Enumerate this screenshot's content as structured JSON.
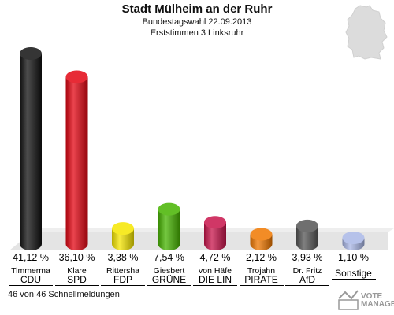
{
  "header": {
    "title": "Stadt Mülheim an der Ruhr",
    "subtitle": "Bundestagswahl 22.09.2013",
    "district": "Erststimmen 3 Linksruhr"
  },
  "footer": {
    "status": "46 von 46 Schnellmeldungen"
  },
  "logo": {
    "text_line1": "VOTE",
    "text_line2": "MANAGER"
  },
  "chart_data": {
    "type": "bar",
    "title": "Stadt Mülheim an der Ruhr",
    "categories": [
      "CDU",
      "SPD",
      "FDP",
      "GRÜNE",
      "DIE LINKE",
      "PIRATEN",
      "AfD",
      "Sonstige"
    ],
    "candidates": [
      "Timmerma",
      "Klare",
      "Rittersha",
      "Giesbert",
      "von Häfe",
      "Trojahn",
      "Dr. Fritz",
      ""
    ],
    "party_labels": [
      "CDU",
      "SPD",
      "FDP",
      "GRÜNE",
      "DIE LIN",
      "PIRATE",
      "AfD",
      "Sonstige"
    ],
    "values": [
      41.12,
      36.1,
      3.38,
      7.54,
      4.72,
      2.12,
      3.93,
      1.1
    ],
    "value_labels": [
      "41,12 %",
      "36,10 %",
      "3,38 %",
      "7,54 %",
      "4,72 %",
      "2,12 %",
      "3,93 %",
      "1,10 %"
    ],
    "colors": [
      "#111111",
      "#e30613",
      "#f5e600",
      "#46b400",
      "#c8144b",
      "#f07800",
      "#555555",
      "#a9b7e6"
    ],
    "ylim": [
      0,
      41.12
    ]
  }
}
